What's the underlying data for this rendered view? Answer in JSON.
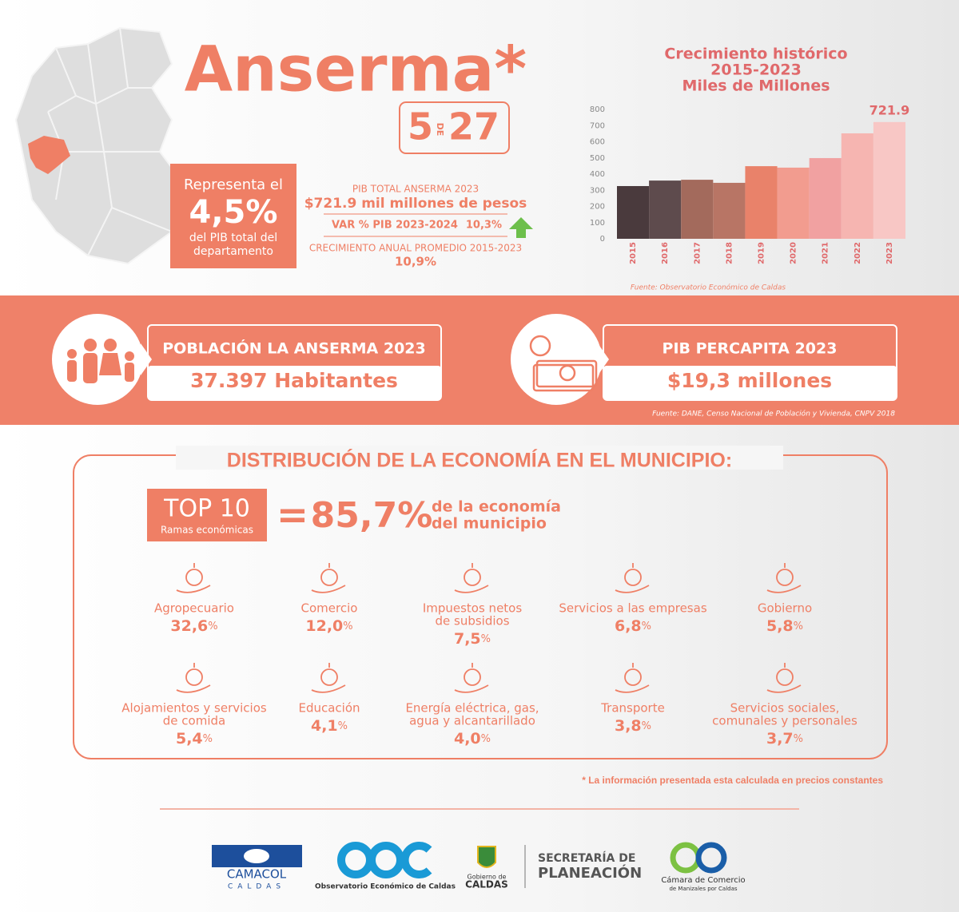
{
  "header": {
    "title": "Anserma*",
    "rank": "5",
    "rank_of": "DE",
    "rank_total": "27"
  },
  "share": {
    "lead": "Representa el",
    "value": "4,5%",
    "lines": [
      "del PIB total del",
      "departamento"
    ]
  },
  "pib": {
    "label": "PIB TOTAL ANSERMA 2023",
    "total": "$721.9 mil millones de pesos",
    "var_label": "VAR % PIB 2023-2024",
    "var_value": "10,3%",
    "growth_label": "CRECIMIENTO ANUAL PROMEDIO 2015-2023",
    "growth_value": "10,9%"
  },
  "chart_data": {
    "type": "bar",
    "title": [
      "Crecimiento histórico",
      "2015-2023",
      "Miles de Millones"
    ],
    "categories": [
      "2015",
      "2016",
      "2017",
      "2018",
      "2019",
      "2020",
      "2021",
      "2022",
      "2023"
    ],
    "values": [
      326,
      360,
      365,
      346,
      449,
      440,
      499,
      652,
      721.9
    ],
    "colors": [
      "#4a3a3d",
      "#5e4b4d",
      "#a36a5c",
      "#b87565",
      "#e9826a",
      "#f29c8f",
      "#f1a1a1",
      "#f6b5b1",
      "#f8c7c5"
    ],
    "labeled": [
      8
    ],
    "ylim": [
      0,
      800
    ],
    "yticks": [
      0,
      100,
      200,
      300,
      400,
      500,
      600,
      700,
      800
    ],
    "grid": false,
    "source": "Fuente: Observatorio Económico de Caldas"
  },
  "stats": [
    {
      "title": "POBLACIÓN LA ANSERMA 2023",
      "value": "37.397 Habitantes"
    },
    {
      "title": "PIB PERCAPITA 2023",
      "value": "$19,3 millones"
    }
  ],
  "stats_source": "Fuente: DANE, Censo Nacional de Población y Vivienda, CNPV 2018",
  "distribution": {
    "heading": "DISTRIBUCIÓN DE LA ECONOMÍA EN EL MUNICIPIO:",
    "top_title": "TOP 10",
    "top_subtitle": "Ramas económicas",
    "equals": "=",
    "share": "85,7%",
    "share_text": [
      "de la economía",
      "del municipio"
    ],
    "sectors": [
      {
        "name": [
          "Agropecuario"
        ],
        "value": "32,6",
        "unit": "%"
      },
      {
        "name": [
          "Comercio"
        ],
        "value": "12,0",
        "unit": "%"
      },
      {
        "name": [
          "Impuestos netos",
          "de subsidios"
        ],
        "value": "7,5",
        "unit": "%"
      },
      {
        "name": [
          "Servicios a las empresas"
        ],
        "value": "6,8",
        "unit": "%"
      },
      {
        "name": [
          "Gobierno"
        ],
        "value": "5,8",
        "unit": "%"
      },
      {
        "name": [
          "Alojamientos y servicios",
          "de comida"
        ],
        "value": "5,4",
        "unit": "%"
      },
      {
        "name": [
          "Educación"
        ],
        "value": "4,1",
        "unit": "%"
      },
      {
        "name": [
          "Energía eléctrica, gas,",
          "agua y alcantarillado"
        ],
        "value": "4,0",
        "unit": "%"
      },
      {
        "name": [
          "Transporte"
        ],
        "value": "3,8",
        "unit": "%"
      },
      {
        "name": [
          "Servicios sociales,",
          "comunales y personales"
        ],
        "value": "3,7",
        "unit": "%"
      }
    ]
  },
  "footnote": "* La información presentada esta calculada en precios constantes",
  "logos": {
    "camacol": [
      "CAMACOL",
      "CALDAS"
    ],
    "oec": "Observatorio Económico de Caldas",
    "gobierno": [
      "Gobierno de",
      "CALDAS"
    ],
    "secretaria": [
      "SECRETARÍA DE",
      "PLANEACIÓN"
    ],
    "camara": [
      "Cámara de Comercio",
      "de Manizales por Caldas"
    ]
  }
}
